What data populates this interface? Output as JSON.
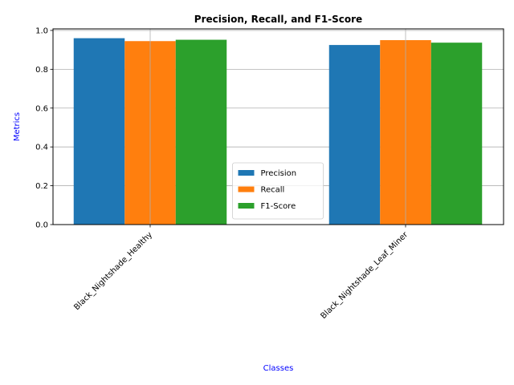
{
  "chart_data": {
    "type": "bar",
    "title": "Precision, Recall, and F1-Score",
    "xlabel": "Classes",
    "ylabel": "Metrics",
    "categories": [
      "Black_Nightshade_Healthy",
      "Black_Nightshade_Leaf_Miner"
    ],
    "series": [
      {
        "name": "Precision",
        "values": [
          0.96,
          0.925
        ],
        "color": "#1f77b4"
      },
      {
        "name": "Recall",
        "values": [
          0.945,
          0.95
        ],
        "color": "#ff7f0e"
      },
      {
        "name": "F1-Score",
        "values": [
          0.952,
          0.937
        ],
        "color": "#2ca02c"
      }
    ],
    "ylim": [
      0,
      1.008
    ],
    "yticks": [
      "0.0",
      "0.2",
      "0.4",
      "0.6",
      "0.8",
      "1.0"
    ],
    "grid": true,
    "legend_position": "lower center",
    "label_color": "#0000ff"
  }
}
